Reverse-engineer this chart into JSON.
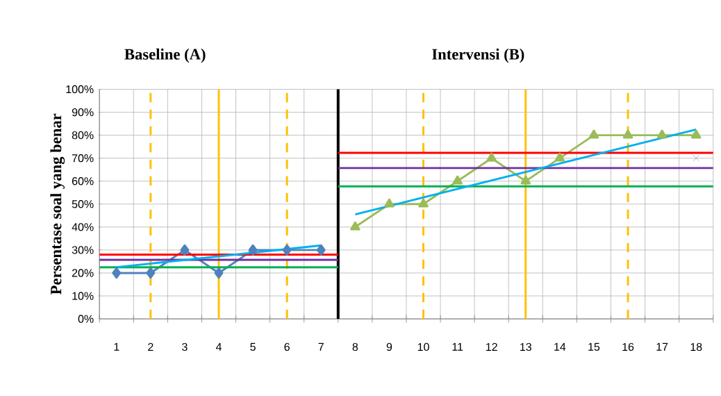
{
  "chart_data": {
    "type": "line",
    "ylabel": "Persentase soal yang benar",
    "annotations": [
      "Baseline (A)",
      "Intervensi (B)"
    ],
    "xlim": [
      0.5,
      18.5
    ],
    "xticks": [
      1,
      2,
      3,
      4,
      5,
      6,
      7,
      8,
      9,
      10,
      11,
      12,
      13,
      14,
      15,
      16,
      17,
      18
    ],
    "ylim": [
      0,
      100
    ],
    "yticks": [
      {
        "value": 0,
        "label": "0%"
      },
      {
        "value": 10,
        "label": "10%"
      },
      {
        "value": 20,
        "label": "20%"
      },
      {
        "value": 30,
        "label": "30%"
      },
      {
        "value": 40,
        "label": "40%"
      },
      {
        "value": 50,
        "label": "50%"
      },
      {
        "value": 60,
        "label": "60%"
      },
      {
        "value": 70,
        "label": "70%"
      },
      {
        "value": 80,
        "label": "80%"
      },
      {
        "value": 90,
        "label": "90%"
      },
      {
        "value": 100,
        "label": "100%"
      }
    ],
    "grid": true,
    "series": [
      {
        "color": "#4f81bd",
        "marker": "diamond",
        "x": [
          1,
          2,
          3,
          4,
          5,
          6,
          7
        ],
        "values": [
          20,
          20,
          30,
          20,
          30,
          30,
          30
        ]
      },
      {
        "color": "#9bbb59",
        "marker": "triangle",
        "x": [
          8,
          9,
          10,
          11,
          12,
          13,
          14,
          15,
          16,
          17,
          18
        ],
        "values": [
          40,
          50,
          50,
          60,
          70,
          60,
          70,
          80,
          80,
          80,
          80
        ]
      },
      {
        "type": "scatter",
        "color": "#7f6aa0",
        "marker": "cross",
        "x": [
          18
        ],
        "values": [
          70
        ]
      },
      {
        "color": "#ff0000",
        "marker": "none",
        "x": [
          0.5,
          7.5
        ],
        "values": [
          28,
          28
        ]
      },
      {
        "color": "#7030a0",
        "marker": "none",
        "x": [
          0.5,
          7.5
        ],
        "values": [
          25.7,
          25.7
        ]
      },
      {
        "color": "#00b050",
        "marker": "none",
        "x": [
          0.5,
          7.5
        ],
        "values": [
          22.5,
          22.5
        ]
      },
      {
        "color": "#ff0000",
        "marker": "none",
        "x": [
          7.5,
          18.5
        ],
        "values": [
          72.3,
          72.3
        ]
      },
      {
        "color": "#7030a0",
        "marker": "none",
        "x": [
          7.5,
          18.5
        ],
        "values": [
          65.7,
          65.7
        ]
      },
      {
        "color": "#00b050",
        "marker": "none",
        "x": [
          7.5,
          18.5
        ],
        "values": [
          57.7,
          57.7
        ]
      },
      {
        "color": "#00b0f0",
        "marker": "none",
        "x": [
          1,
          7
        ],
        "values": [
          22.5,
          32
        ]
      },
      {
        "color": "#00b0f0",
        "marker": "none",
        "x": [
          8,
          18
        ],
        "values": [
          45.5,
          82.5
        ]
      }
    ],
    "ref_lines": [
      {
        "axis": "x",
        "value": 2,
        "color": "#ffc000",
        "line_style": "dashed"
      },
      {
        "axis": "x",
        "value": 4,
        "color": "#ffc000",
        "line_style": "solid"
      },
      {
        "axis": "x",
        "value": 6,
        "color": "#ffc000",
        "line_style": "dashed"
      },
      {
        "axis": "x",
        "value": 7.5,
        "color": "#000000",
        "line_style": "solid"
      },
      {
        "axis": "x",
        "value": 10,
        "color": "#ffc000",
        "line_style": "dashed"
      },
      {
        "axis": "x",
        "value": 13,
        "color": "#ffc000",
        "line_style": "solid"
      },
      {
        "axis": "x",
        "value": 16,
        "color": "#ffc000",
        "line_style": "dashed"
      }
    ]
  }
}
